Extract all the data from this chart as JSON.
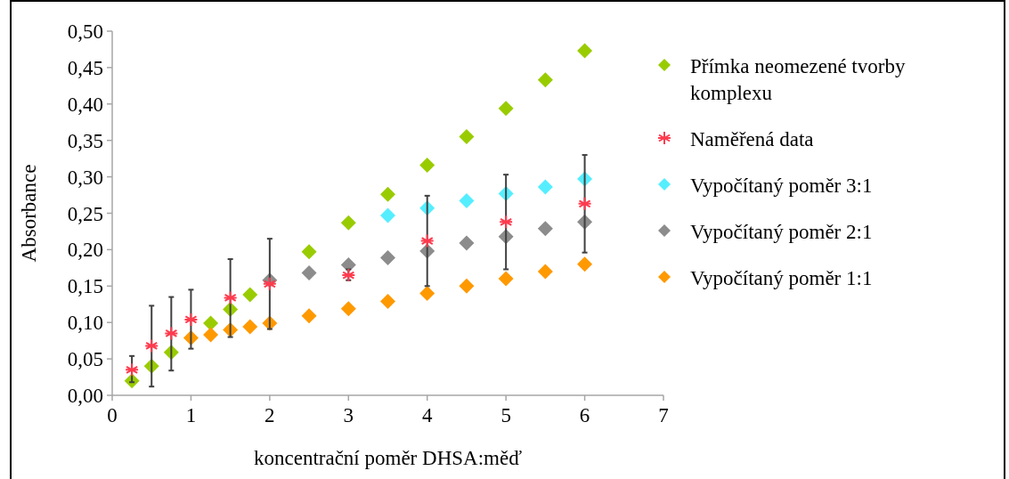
{
  "chart_data": {
    "type": "scatter",
    "xlabel": "koncentrační poměr DHSA:měď",
    "ylabel": "Absorbance",
    "xlim": [
      0,
      7
    ],
    "xticks": [
      0,
      1,
      2,
      3,
      4,
      5,
      6,
      7
    ],
    "ylim": [
      0,
      0.5
    ],
    "yticks": [
      {
        "value": 0,
        "label": "0,00"
      },
      {
        "value": 0.05,
        "label": "0,05"
      },
      {
        "value": 0.1,
        "label": "0,10"
      },
      {
        "value": 0.15,
        "label": "0,15"
      },
      {
        "value": 0.2,
        "label": "0,20"
      },
      {
        "value": 0.25,
        "label": "0,25"
      },
      {
        "value": 0.3,
        "label": "0,30"
      },
      {
        "value": 0.35,
        "label": "0,35"
      },
      {
        "value": 0.4,
        "label": "0,40"
      },
      {
        "value": 0.45,
        "label": "0,45"
      },
      {
        "value": 0.5,
        "label": "0,50"
      }
    ],
    "grid": false,
    "legend": "right",
    "marker": "diamond",
    "series": [
      {
        "name": "Přímka neomezené tvorby komplexu",
        "color": "#99cc00",
        "x": [
          0.25,
          0.5,
          0.75,
          1.25,
          1.5,
          1.75,
          2.5,
          3,
          3.5,
          4,
          4.5,
          5,
          5.5,
          6
        ],
        "values": [
          0.02,
          0.04,
          0.059,
          0.099,
          0.118,
          0.138,
          0.197,
          0.237,
          0.276,
          0.316,
          0.355,
          0.394,
          0.433,
          0.473
        ]
      },
      {
        "name": "Naměřená data",
        "color": "#ff3b4e",
        "marker": "cross",
        "x": [
          0.25,
          0.5,
          0.75,
          1,
          1.5,
          2,
          3,
          4,
          5,
          6
        ],
        "values": [
          0.035,
          0.068,
          0.085,
          0.104,
          0.134,
          0.153,
          0.165,
          0.212,
          0.238,
          0.263
        ],
        "errors": [
          [
            0.018,
            0.054
          ],
          [
            0.012,
            0.123
          ],
          [
            0.034,
            0.135
          ],
          [
            0.064,
            0.145
          ],
          [
            0.08,
            0.187
          ],
          [
            0.091,
            0.215
          ],
          [
            0.158,
            0.173
          ],
          [
            0.15,
            0.274
          ],
          [
            0.173,
            0.303
          ],
          [
            0.196,
            0.33
          ]
        ]
      },
      {
        "name": "Vypočítaný poměr 3:1",
        "color": "#55eeff",
        "x": [
          3.5,
          4,
          4.5,
          5,
          5.5,
          6
        ],
        "values": [
          0.247,
          0.257,
          0.267,
          0.277,
          0.286,
          0.297
        ]
      },
      {
        "name": "Vypočítaný poměr 2:1",
        "color": "#8c8c8c",
        "x": [
          2,
          2.5,
          3,
          3.5,
          4,
          4.5,
          5,
          5.5,
          6
        ],
        "values": [
          0.158,
          0.168,
          0.179,
          0.189,
          0.198,
          0.209,
          0.218,
          0.229,
          0.238
        ]
      },
      {
        "name": "Vypočítaný poměr 1:1",
        "color": "#ff9900",
        "x": [
          1,
          1.25,
          1.5,
          1.75,
          2,
          2.5,
          3,
          3.5,
          4,
          4.5,
          5,
          5.5,
          6
        ],
        "values": [
          0.079,
          0.083,
          0.09,
          0.094,
          0.099,
          0.109,
          0.119,
          0.129,
          0.14,
          0.15,
          0.16,
          0.17,
          0.18
        ]
      }
    ]
  }
}
